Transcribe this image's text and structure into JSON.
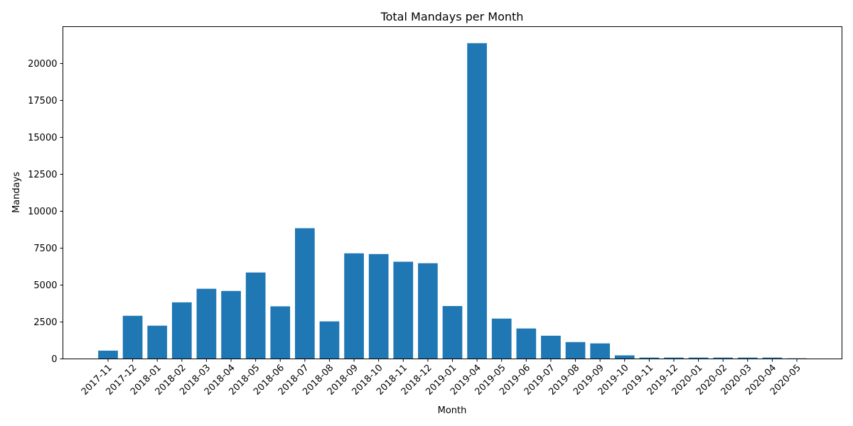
{
  "chart_data": {
    "type": "bar",
    "title": "Total Mandays per Month",
    "xlabel": "Month",
    "ylabel": "Mandays",
    "ylim": [
      0,
      22500
    ],
    "yticks": [
      0,
      2500,
      5000,
      7500,
      10000,
      12500,
      15000,
      17500,
      20000
    ],
    "grid": false,
    "bar_color": "#1f77b4",
    "categories": [
      "2017-11",
      "2017-12",
      "2018-01",
      "2018-02",
      "2018-03",
      "2018-04",
      "2018-05",
      "2018-06",
      "2018-07",
      "2018-08",
      "2018-09",
      "2018-10",
      "2018-11",
      "2018-12",
      "2019-01",
      "2019-04",
      "2019-05",
      "2019-06",
      "2019-07",
      "2019-08",
      "2019-09",
      "2019-10",
      "2019-11",
      "2019-12",
      "2020-01",
      "2020-02",
      "2020-03",
      "2020-04",
      "2020-05"
    ],
    "values": [
      560,
      2920,
      2250,
      3830,
      4750,
      4600,
      5850,
      3560,
      8850,
      2540,
      7150,
      7100,
      6580,
      6480,
      3580,
      21380,
      2730,
      2060,
      1570,
      1140,
      1050,
      240,
      90,
      90,
      90,
      90,
      90,
      90,
      40
    ]
  }
}
